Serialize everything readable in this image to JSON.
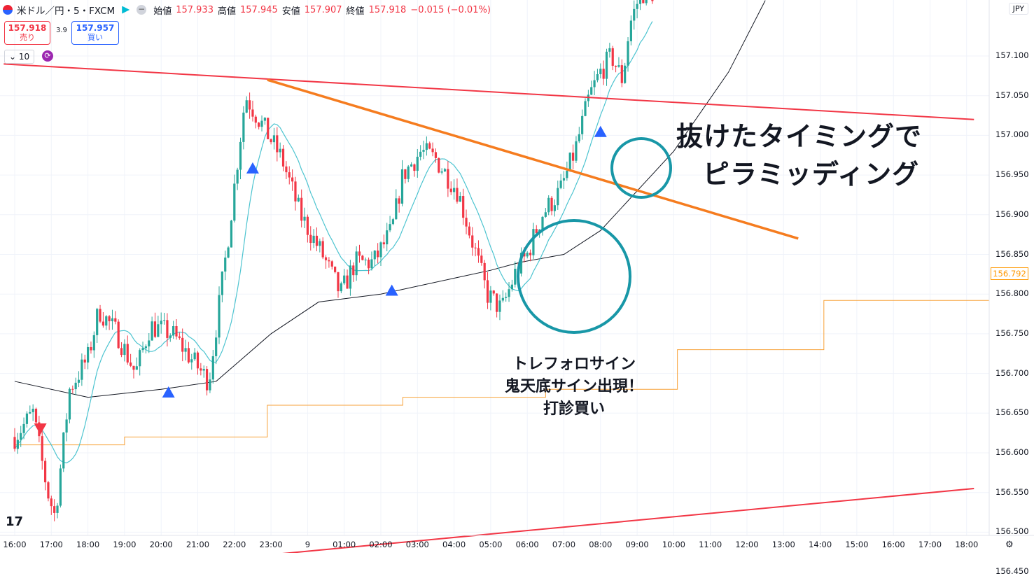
{
  "header": {
    "symbol": "米ドル／円・5・FXCM",
    "open_label": "始値",
    "open": "157.933",
    "high_label": "高値",
    "high": "157.945",
    "low_label": "安値",
    "low": "157.907",
    "close_label": "終値",
    "close": "157.918",
    "change": "−0.015 (−0.01%)"
  },
  "trade": {
    "sell_price": "157.918",
    "sell_label": "売り",
    "spread": "3.9",
    "buy_price": "157.957",
    "buy_label": "買い"
  },
  "indicator_count": "10",
  "currency": "JPY",
  "last_price_tag": "156.792",
  "annotations": {
    "breakout_line1": "抜けたタイミングで",
    "breakout_line2": "ピラミッディング",
    "signal_line1": "トレフォロサイン",
    "signal_line2": "鬼天底サイン出現！",
    "signal_line3": "打診買い"
  },
  "colors": {
    "up": "#26a69a",
    "down": "#f23645",
    "ma_fast": "#4dc4d0",
    "ma_slow": "#131722",
    "stop": "#f7a23a",
    "trend_orange": "#f57c1f",
    "channel_red": "#f23645",
    "circle": "#1897a7",
    "buy_marker": "#2962ff",
    "sell_marker": "#f23645"
  },
  "chart_data": {
    "type": "candlestick",
    "instrument": "USD/JPY 5m",
    "y_ticks": [
      "157.100",
      "157.050",
      "157.000",
      "156.950",
      "156.900",
      "156.850",
      "156.800",
      "156.750",
      "156.700",
      "156.650",
      "156.600",
      "156.550",
      "156.500",
      "156.450"
    ],
    "x_ticks": [
      "16:00",
      "17:00",
      "18:00",
      "19:00",
      "20:00",
      "21:00",
      "22:00",
      "23:00",
      "9",
      "01:00",
      "02:00",
      "03:00",
      "04:00",
      "05:00",
      "06:00",
      "07:00",
      "08:00",
      "09:00",
      "10:00",
      "11:00",
      "12:00",
      "13:00",
      "14:00",
      "15:00",
      "16:00",
      "17:00",
      "18:00"
    ],
    "ylim": [
      156.43,
      157.17
    ],
    "price_anchors": [
      {
        "t": 0.0,
        "p": 156.62
      },
      {
        "t": 0.5,
        "p": 156.65
      },
      {
        "t": 0.9,
        "p": 156.55
      },
      {
        "t": 1.1,
        "p": 156.52
      },
      {
        "t": 1.5,
        "p": 156.68
      },
      {
        "t": 2.0,
        "p": 156.72
      },
      {
        "t": 2.3,
        "p": 156.78
      },
      {
        "t": 2.8,
        "p": 156.75
      },
      {
        "t": 3.3,
        "p": 156.7
      },
      {
        "t": 3.7,
        "p": 156.76
      },
      {
        "t": 4.3,
        "p": 156.75
      },
      {
        "t": 4.8,
        "p": 156.72
      },
      {
        "t": 5.3,
        "p": 156.69
      },
      {
        "t": 5.8,
        "p": 156.86
      },
      {
        "t": 6.3,
        "p": 157.05
      },
      {
        "t": 6.8,
        "p": 157.01
      },
      {
        "t": 7.3,
        "p": 156.97
      },
      {
        "t": 7.8,
        "p": 156.9
      },
      {
        "t": 8.4,
        "p": 156.85
      },
      {
        "t": 8.9,
        "p": 156.8
      },
      {
        "t": 9.3,
        "p": 156.84
      },
      {
        "t": 9.8,
        "p": 156.84
      },
      {
        "t": 10.3,
        "p": 156.88
      },
      {
        "t": 10.6,
        "p": 156.95
      },
      {
        "t": 11.1,
        "p": 156.98
      },
      {
        "t": 11.5,
        "p": 156.97
      },
      {
        "t": 12.1,
        "p": 156.93
      },
      {
        "t": 12.6,
        "p": 156.85
      },
      {
        "t": 12.9,
        "p": 156.8
      },
      {
        "t": 13.3,
        "p": 156.78
      },
      {
        "t": 13.7,
        "p": 156.83
      },
      {
        "t": 14.0,
        "p": 156.85
      },
      {
        "t": 14.4,
        "p": 156.9
      },
      {
        "t": 14.9,
        "p": 156.93
      },
      {
        "t": 15.3,
        "p": 156.98
      },
      {
        "t": 15.7,
        "p": 157.05
      },
      {
        "t": 16.0,
        "p": 157.08
      },
      {
        "t": 16.3,
        "p": 157.1
      },
      {
        "t": 16.6,
        "p": 157.07
      },
      {
        "t": 16.8,
        "p": 157.14
      },
      {
        "t": 17.1,
        "p": 157.18
      },
      {
        "t": 17.5,
        "p": 157.18
      }
    ],
    "moving_average_slow": [
      {
        "t": 0,
        "p": 156.69
      },
      {
        "t": 2,
        "p": 156.67
      },
      {
        "t": 4,
        "p": 156.68
      },
      {
        "t": 5.5,
        "p": 156.69
      },
      {
        "t": 7,
        "p": 156.75
      },
      {
        "t": 8.3,
        "p": 156.79
      },
      {
        "t": 10,
        "p": 156.8
      },
      {
        "t": 12,
        "p": 156.82
      },
      {
        "t": 13,
        "p": 156.83
      },
      {
        "t": 13.8,
        "p": 156.84
      },
      {
        "t": 15,
        "p": 156.85
      },
      {
        "t": 16,
        "p": 156.88
      },
      {
        "t": 18,
        "p": 156.98
      },
      {
        "t": 19.5,
        "p": 157.08
      },
      {
        "t": 20.5,
        "p": 157.17
      }
    ],
    "trailing_stop_steps": [
      {
        "t": 0.0,
        "p": 156.61
      },
      {
        "t": 3.0,
        "p": 156.62
      },
      {
        "t": 6.9,
        "p": 156.66
      },
      {
        "t": 10.6,
        "p": 156.67
      },
      {
        "t": 14.5,
        "p": 156.68
      },
      {
        "t": 18.1,
        "p": 156.73
      },
      {
        "t": 22.1,
        "p": 156.792
      }
    ],
    "trendlines": [
      {
        "name": "",
        "color": "red",
        "from": {
          "t": -0.3,
          "p": 157.09
        },
        "to": {
          "t": 26.2,
          "p": 157.02
        }
      },
      {
        "name": "",
        "color": "red",
        "from": {
          "t": -0.3,
          "p": 156.44
        },
        "to": {
          "t": 26.2,
          "p": 156.555
        }
      },
      {
        "name": "",
        "color": "orange",
        "from": {
          "t": 6.9,
          "p": 157.07
        },
        "to": {
          "t": 21.4,
          "p": 156.87
        }
      }
    ],
    "buy_signals_t": [
      4.2,
      6.5,
      10.3,
      16.0
    ],
    "sell_signals_t": [
      0.7
    ],
    "legend": "none",
    "grid": true
  }
}
